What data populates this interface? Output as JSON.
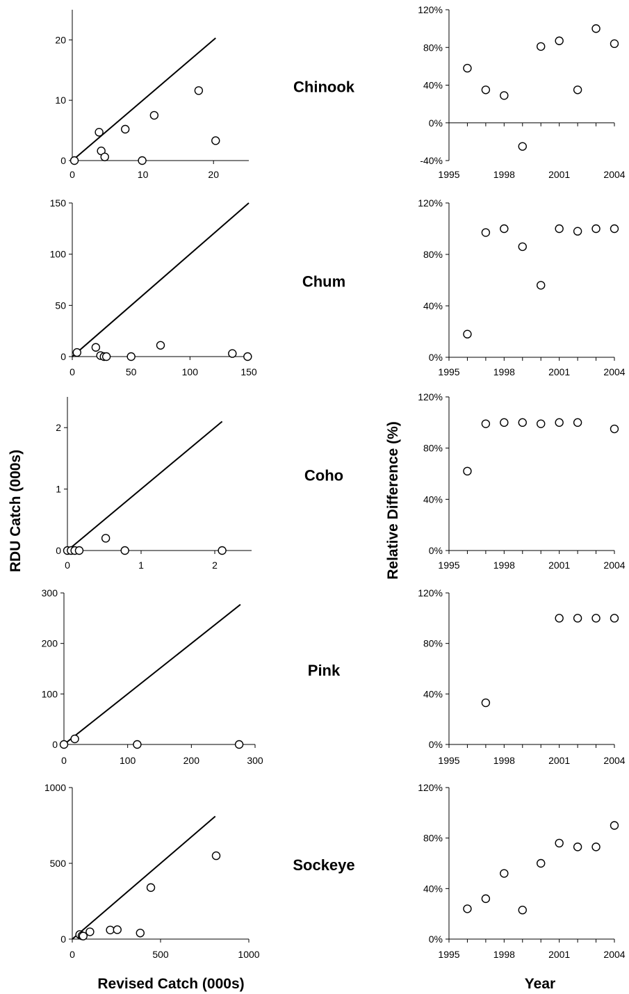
{
  "axis_labels": {
    "left_y": "RDU Catch (000s)",
    "left_x": "Revised Catch (000s)",
    "right_y": "Relative Difference (%)",
    "right_x": "Year"
  },
  "chart_data": [
    {
      "type": "scatter",
      "species": "Chinook",
      "scatter": {
        "xlim": [
          0,
          25
        ],
        "ylim": [
          0,
          25
        ],
        "xticks": [
          0,
          10,
          20
        ],
        "yticks": [
          0,
          10,
          20
        ],
        "points": [
          [
            0.3,
            0
          ],
          [
            3.8,
            4.7
          ],
          [
            4.1,
            1.6
          ],
          [
            4.6,
            0.6
          ],
          [
            7.5,
            5.2
          ],
          [
            9.9,
            0
          ],
          [
            11.6,
            7.5
          ],
          [
            17.9,
            11.6
          ],
          [
            20.3,
            3.3
          ]
        ],
        "line_end": 20.3
      },
      "rel_diff": {
        "xlim": [
          1995,
          2004
        ],
        "ylim": [
          -40,
          120
        ],
        "xticks": [
          1995,
          1998,
          2001,
          2004
        ],
        "yticks": [
          -40,
          0,
          40,
          80,
          120
        ],
        "points": [
          [
            1996,
            58
          ],
          [
            1997,
            35
          ],
          [
            1998,
            29
          ],
          [
            1999,
            -25
          ],
          [
            2000,
            81
          ],
          [
            2001,
            87
          ],
          [
            2002,
            35
          ],
          [
            2003,
            100
          ],
          [
            2004,
            84
          ]
        ]
      }
    },
    {
      "type": "scatter",
      "species": "Chum",
      "scatter": {
        "xlim": [
          0,
          150
        ],
        "ylim": [
          0,
          150
        ],
        "xticks": [
          0,
          50,
          100,
          150
        ],
        "yticks": [
          0,
          50,
          100,
          150
        ],
        "points": [
          [
            4,
            4
          ],
          [
            20,
            9
          ],
          [
            24,
            1
          ],
          [
            27,
            0
          ],
          [
            29,
            0
          ],
          [
            50,
            0
          ],
          [
            75,
            11
          ],
          [
            136,
            3
          ],
          [
            149,
            0
          ]
        ],
        "line_end": 150
      },
      "rel_diff": {
        "xlim": [
          1995,
          2004
        ],
        "ylim": [
          0,
          120
        ],
        "xticks": [
          1995,
          1998,
          2001,
          2004
        ],
        "yticks": [
          0,
          40,
          80,
          120
        ],
        "points": [
          [
            1996,
            18
          ],
          [
            1997,
            97
          ],
          [
            1998,
            100
          ],
          [
            1999,
            86
          ],
          [
            2000,
            56
          ],
          [
            2001,
            100
          ],
          [
            2002,
            98
          ],
          [
            2003,
            100
          ],
          [
            2004,
            100
          ]
        ]
      }
    },
    {
      "type": "scatter",
      "species": "Coho",
      "scatter": {
        "xlim": [
          0,
          2.5
        ],
        "ylim": [
          0,
          2.5
        ],
        "xticks": [
          0,
          1,
          2
        ],
        "yticks": [
          0,
          1,
          2
        ],
        "points": [
          [
            0.0,
            0
          ],
          [
            0.05,
            0
          ],
          [
            0.1,
            0
          ],
          [
            0.16,
            0
          ],
          [
            0.52,
            0.2
          ],
          [
            0.78,
            0
          ],
          [
            2.1,
            0
          ]
        ],
        "line_end": 2.1
      },
      "rel_diff": {
        "xlim": [
          1995,
          2004
        ],
        "ylim": [
          0,
          120
        ],
        "xticks": [
          1995,
          1998,
          2001,
          2004
        ],
        "yticks": [
          0,
          40,
          80,
          120
        ],
        "points": [
          [
            1996,
            62
          ],
          [
            1997,
            99
          ],
          [
            1998,
            100
          ],
          [
            1999,
            100
          ],
          [
            2000,
            99
          ],
          [
            2001,
            100
          ],
          [
            2002,
            100
          ],
          [
            2004,
            95
          ]
        ]
      }
    },
    {
      "type": "scatter",
      "species": "Pink",
      "scatter": {
        "xlim": [
          0,
          300
        ],
        "ylim": [
          0,
          300
        ],
        "xticks": [
          0,
          100,
          200,
          300
        ],
        "yticks": [
          0,
          100,
          200,
          300
        ],
        "points": [
          [
            0,
            0
          ],
          [
            17,
            11
          ],
          [
            115,
            0
          ],
          [
            275,
            0
          ]
        ],
        "line_end": 277
      },
      "rel_diff": {
        "xlim": [
          1995,
          2004
        ],
        "ylim": [
          0,
          120
        ],
        "xticks": [
          1995,
          1998,
          2001,
          2004
        ],
        "yticks": [
          0,
          40,
          80,
          120
        ],
        "points": [
          [
            1997,
            33
          ],
          [
            2001,
            100
          ],
          [
            2002,
            100
          ],
          [
            2003,
            100
          ],
          [
            2004,
            100
          ]
        ]
      }
    },
    {
      "type": "scatter",
      "species": "Sockeye",
      "scatter": {
        "xlim": [
          0,
          1000
        ],
        "ylim": [
          0,
          1000
        ],
        "xticks": [
          0,
          500,
          1000
        ],
        "yticks": [
          0,
          500,
          1000
        ],
        "points": [
          [
            42,
            30
          ],
          [
            55,
            22
          ],
          [
            62,
            20
          ],
          [
            100,
            48
          ],
          [
            215,
            60
          ],
          [
            255,
            62
          ],
          [
            385,
            40
          ],
          [
            445,
            340
          ],
          [
            815,
            550
          ]
        ],
        "line_end": 810
      },
      "rel_diff": {
        "xlim": [
          1995,
          2004
        ],
        "ylim": [
          0,
          120
        ],
        "xticks": [
          1995,
          1998,
          2001,
          2004
        ],
        "yticks": [
          0,
          40,
          80,
          120
        ],
        "points": [
          [
            1996,
            24
          ],
          [
            1997,
            32
          ],
          [
            1998,
            52
          ],
          [
            1999,
            23
          ],
          [
            2000,
            60
          ],
          [
            2001,
            76
          ],
          [
            2002,
            73
          ],
          [
            2003,
            73
          ],
          [
            2004,
            90
          ]
        ]
      }
    }
  ]
}
